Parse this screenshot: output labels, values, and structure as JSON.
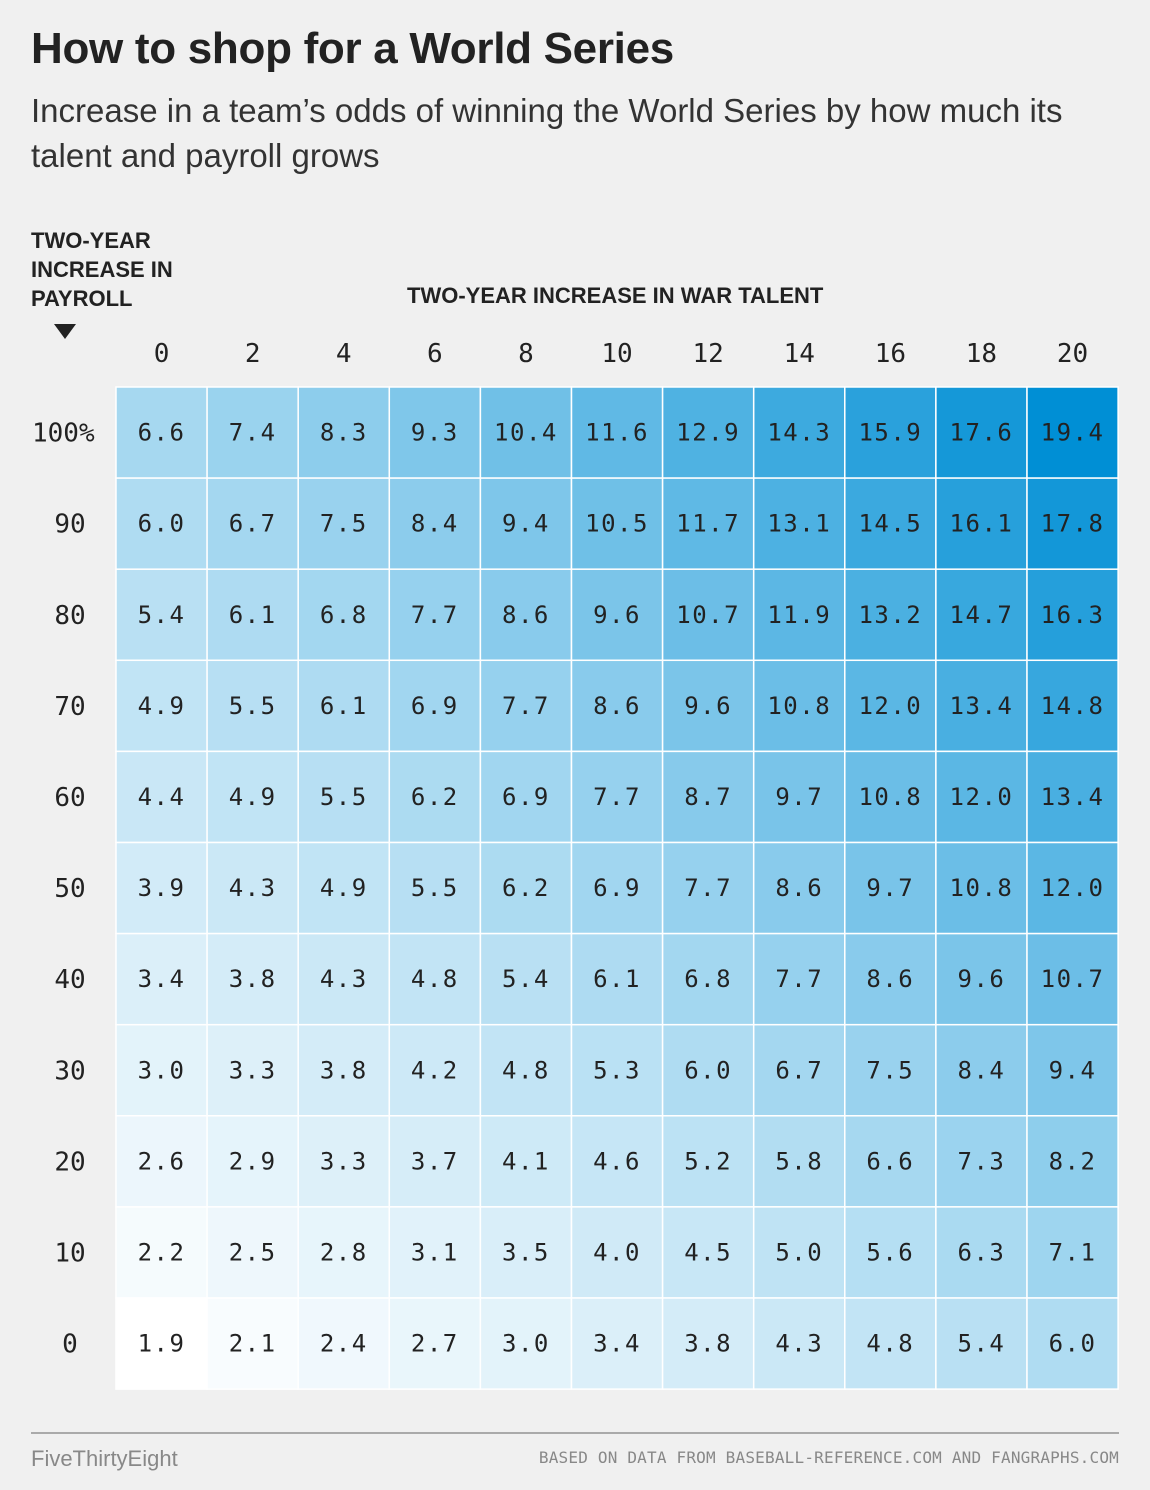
{
  "chart_data": {
    "type": "heatmap",
    "title": "How to shop for a World Series",
    "subtitle": "Increase in a team’s odds of winning the World Series by how much its talent and payroll grows",
    "xlabel": "TWO-YEAR INCREASE IN WAR TALENT",
    "ylabel": "TWO-YEAR INCREASE IN PAYROLL",
    "x": [
      "0",
      "2",
      "4",
      "6",
      "8",
      "10",
      "12",
      "14",
      "16",
      "18",
      "20"
    ],
    "y": [
      "100%",
      "90",
      "80",
      "70",
      "60",
      "50",
      "40",
      "30",
      "20",
      "10",
      "0"
    ],
    "values": [
      [
        "6.6",
        "7.4",
        "8.3",
        "9.3",
        "10.4",
        "11.6",
        "12.9",
        "14.3",
        "15.9",
        "17.6",
        "19.4"
      ],
      [
        "6.0",
        "6.7",
        "7.5",
        "8.4",
        "9.4",
        "10.5",
        "11.7",
        "13.1",
        "14.5",
        "16.1",
        "17.8"
      ],
      [
        "5.4",
        "6.1",
        "6.8",
        "7.7",
        "8.6",
        "9.6",
        "10.7",
        "11.9",
        "13.2",
        "14.7",
        "16.3"
      ],
      [
        "4.9",
        "5.5",
        "6.1",
        "6.9",
        "7.7",
        "8.6",
        "9.6",
        "10.8",
        "12.0",
        "13.4",
        "14.8"
      ],
      [
        "4.4",
        "4.9",
        "5.5",
        "6.2",
        "6.9",
        "7.7",
        "8.7",
        "9.7",
        "10.8",
        "12.0",
        "13.4"
      ],
      [
        "3.9",
        "4.3",
        "4.9",
        "5.5",
        "6.2",
        "6.9",
        "7.7",
        "8.6",
        "9.7",
        "10.8",
        "12.0"
      ],
      [
        "3.4",
        "3.8",
        "4.3",
        "4.8",
        "5.4",
        "6.1",
        "6.8",
        "7.7",
        "8.6",
        "9.6",
        "10.7"
      ],
      [
        "3.0",
        "3.3",
        "3.8",
        "4.2",
        "4.8",
        "5.3",
        "6.0",
        "6.7",
        "7.5",
        "8.4",
        "9.4"
      ],
      [
        "2.6",
        "2.9",
        "3.3",
        "3.7",
        "4.1",
        "4.6",
        "5.2",
        "5.8",
        "6.6",
        "7.3",
        "8.2"
      ],
      [
        "2.2",
        "2.5",
        "2.8",
        "3.1",
        "3.5",
        "4.0",
        "4.5",
        "5.0",
        "5.6",
        "6.3",
        "7.1"
      ],
      [
        "1.9",
        "2.1",
        "2.4",
        "2.7",
        "3.0",
        "3.4",
        "3.8",
        "4.3",
        "4.8",
        "5.4",
        "6.0"
      ]
    ],
    "color_low": "#ffffff",
    "color_high": "#008fd5"
  },
  "footer": {
    "brand": "FiveThirtyEight",
    "source": "BASED ON DATA FROM BASEBALL-REFERENCE.COM AND FANGRAPHS.COM"
  }
}
